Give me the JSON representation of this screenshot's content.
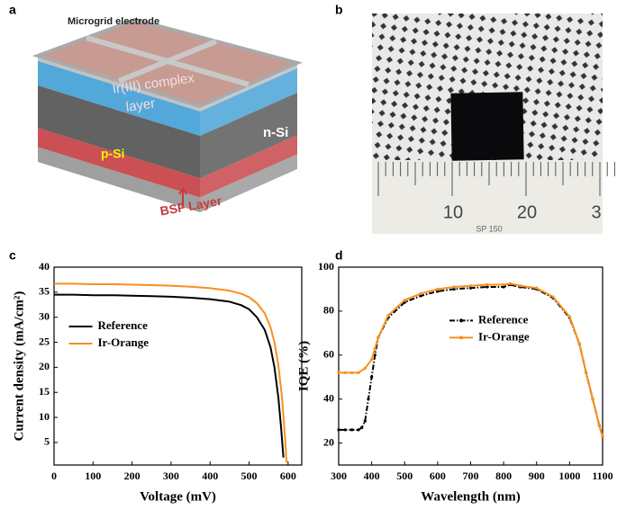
{
  "panel_labels": [
    "a",
    "b",
    "c",
    "d"
  ],
  "diagram": {
    "electrode_label": "Microgrid electrode",
    "complex_label": [
      "Ir(III) complex",
      "layer"
    ],
    "p_label": "p-Si",
    "n_label": "n-Si",
    "bsf_label": "BSF Layer"
  },
  "photo": {
    "ruler_labels": [
      "10",
      "20",
      "3"
    ],
    "ruler_brand": "SP 150"
  },
  "chart_data": [
    {
      "type": "line",
      "xlabel": "Voltage (mV)",
      "ylabel": "Current density (mA/cm²)",
      "xlim": [
        0,
        635
      ],
      "xticks": [
        0,
        100,
        200,
        300,
        400,
        500,
        600
      ],
      "ylim": [
        0.5,
        40
      ],
      "yticks": [
        5,
        10,
        15,
        20,
        25,
        30,
        35,
        40
      ],
      "legend": "center left",
      "series": [
        {
          "name": "Reference",
          "color": "#000000",
          "x": [
            0,
            50,
            100,
            150,
            200,
            250,
            300,
            350,
            400,
            450,
            480,
            500,
            520,
            540,
            555,
            565,
            575,
            582,
            588
          ],
          "values": [
            34.5,
            34.5,
            34.4,
            34.4,
            34.3,
            34.2,
            34.1,
            33.9,
            33.6,
            33.1,
            32.4,
            31.6,
            30.0,
            27.5,
            24.0,
            20.0,
            14.0,
            8.0,
            2.0
          ]
        },
        {
          "name": "Ir-Orange",
          "color": "#f7901e",
          "x": [
            0,
            50,
            100,
            150,
            200,
            250,
            300,
            350,
            400,
            450,
            480,
            500,
            520,
            540,
            555,
            565,
            575,
            585,
            592,
            596
          ],
          "values": [
            36.7,
            36.7,
            36.6,
            36.6,
            36.5,
            36.4,
            36.3,
            36.1,
            35.8,
            35.3,
            34.7,
            34.0,
            32.8,
            30.8,
            28.0,
            25.0,
            20.5,
            13.5,
            6.0,
            1.0
          ]
        }
      ]
    },
    {
      "type": "line",
      "xlabel": "Wavelength (nm)",
      "ylabel": "IQE (%)",
      "xlim": [
        300,
        1100
      ],
      "xticks": [
        300,
        400,
        500,
        600,
        700,
        800,
        900,
        1000,
        1100
      ],
      "ylim": [
        10,
        100
      ],
      "yticks": [
        20,
        40,
        60,
        80,
        100
      ],
      "legend": "upper center",
      "markers": true,
      "series": [
        {
          "name": "Reference",
          "color": "#000000",
          "dash": true,
          "x": [
            300,
            320,
            340,
            360,
            370,
            380,
            390,
            400,
            410,
            420,
            450,
            500,
            550,
            600,
            650,
            700,
            750,
            800,
            820,
            850,
            900,
            950,
            1000,
            1030,
            1050,
            1070,
            1090,
            1100
          ],
          "values": [
            26,
            26,
            26,
            26,
            27,
            30,
            40,
            50,
            60,
            68,
            77,
            84,
            87,
            89,
            90,
            90.5,
            91,
            91,
            92,
            91,
            90,
            86,
            77,
            65,
            52,
            40,
            28,
            23
          ]
        },
        {
          "name": "Ir-Orange",
          "color": "#f7901e",
          "x": [
            300,
            320,
            340,
            360,
            380,
            400,
            410,
            420,
            450,
            500,
            550,
            600,
            650,
            700,
            750,
            800,
            820,
            850,
            900,
            950,
            1000,
            1030,
            1050,
            1070,
            1090,
            1100
          ],
          "values": [
            52,
            52,
            52,
            52,
            54,
            58,
            63,
            68,
            78,
            85,
            88,
            90,
            91,
            91.5,
            92,
            92,
            92.5,
            91.5,
            90.5,
            86.5,
            77.5,
            65,
            52,
            40,
            28,
            23
          ]
        }
      ]
    }
  ]
}
